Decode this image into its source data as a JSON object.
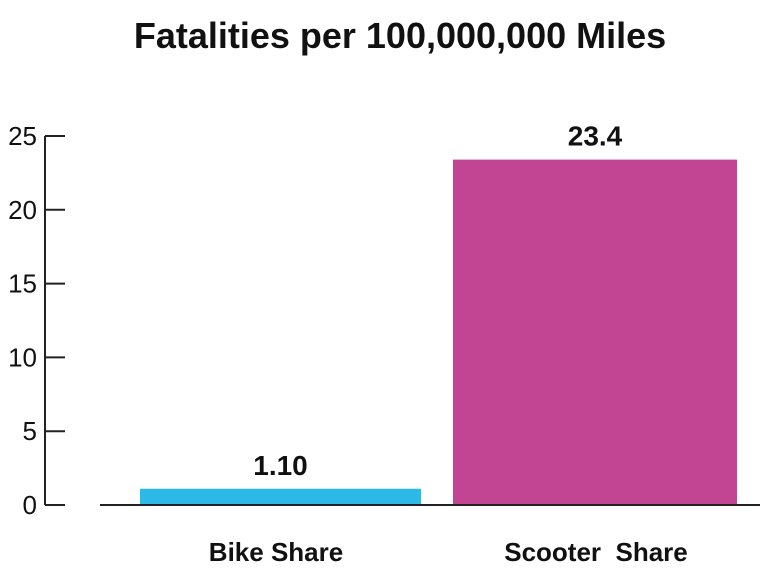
{
  "chart_data": {
    "type": "bar",
    "title": "Fatalities per 100,000,000 Miles",
    "categories": [
      "Bike Share",
      "Scooter  Share"
    ],
    "values": [
      1.1,
      23.4
    ],
    "value_labels": [
      "1.10",
      "23.4"
    ],
    "colors": [
      "#2bb9e8",
      "#c24593"
    ],
    "ylim": [
      0,
      25
    ],
    "yticks": [
      "0",
      "5",
      "10",
      "15",
      "20",
      "25"
    ],
    "xlabel": "",
    "ylabel": "",
    "grid": false,
    "legend": "none"
  }
}
